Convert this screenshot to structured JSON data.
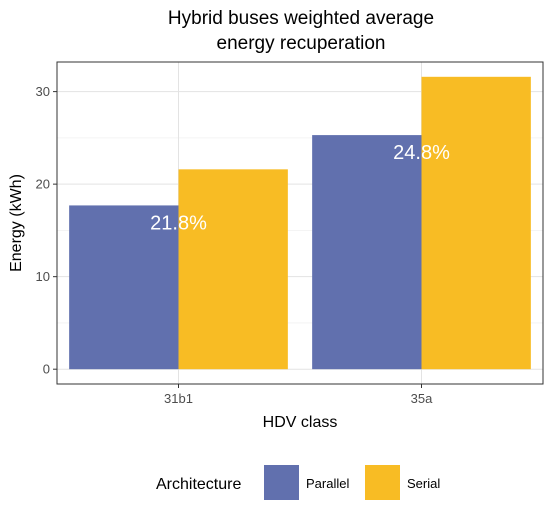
{
  "chart_data": {
    "type": "bar",
    "title_line1": "Hybrid buses weighted average",
    "title_line2": "energy recuperation",
    "xlabel": "HDV class",
    "ylabel": "Energy (kWh)",
    "categories": [
      "31b1",
      "35a"
    ],
    "series": [
      {
        "name": "Parallel",
        "values": [
          17.7,
          25.3
        ],
        "color": "#6170ae"
      },
      {
        "name": "Serial",
        "values": [
          21.6,
          31.6
        ],
        "color": "#f8bc24"
      }
    ],
    "annotations": [
      "21.8%",
      "24.8%"
    ],
    "ylim": [
      -1.6,
      33.2
    ],
    "yticks": [
      0,
      10,
      20,
      30
    ],
    "grid": true,
    "legend": {
      "title": "Architecture",
      "position": "bottom"
    }
  }
}
